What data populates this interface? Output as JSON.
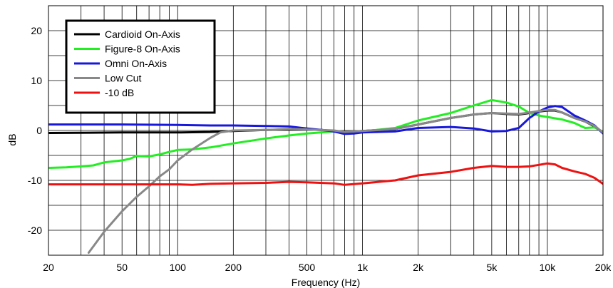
{
  "chart_data": {
    "type": "line",
    "title": "",
    "xlabel": "Frequency (Hz)",
    "ylabel": "dB",
    "x_scale": "log",
    "xlim": [
      20,
      20000
    ],
    "ylim": [
      -25,
      25
    ],
    "grid": true,
    "legend_position": "top-left",
    "x_ticks": [
      {
        "value": 20,
        "label": "20"
      },
      {
        "value": 50,
        "label": "50"
      },
      {
        "value": 100,
        "label": "100"
      },
      {
        "value": 200,
        "label": "200"
      },
      {
        "value": 500,
        "label": "500"
      },
      {
        "value": 1000,
        "label": "1k"
      },
      {
        "value": 2000,
        "label": "2k"
      },
      {
        "value": 5000,
        "label": "5k"
      },
      {
        "value": 10000,
        "label": "10k"
      },
      {
        "value": 20000,
        "label": "20k"
      }
    ],
    "y_ticks": [
      {
        "value": 20,
        "label": "20"
      },
      {
        "value": 10,
        "label": "10"
      },
      {
        "value": 0,
        "label": "0"
      },
      {
        "value": -10,
        "label": "-10"
      },
      {
        "value": -20,
        "label": "-20"
      }
    ],
    "series": [
      {
        "name": "Cardioid On-Axis",
        "color": "#000000",
        "points": [
          [
            20,
            -0.5
          ],
          [
            50,
            -0.4
          ],
          [
            100,
            -0.4
          ],
          [
            150,
            -0.3
          ],
          [
            200,
            -0.1
          ],
          [
            300,
            0.1
          ],
          [
            400,
            0.2
          ],
          [
            500,
            0.2
          ],
          [
            600,
            0.1
          ],
          [
            700,
            -0.1
          ],
          [
            800,
            -0.3
          ],
          [
            900,
            -0.2
          ],
          [
            1000,
            -0.1
          ],
          [
            1500,
            0.3
          ],
          [
            2000,
            1.2
          ],
          [
            3000,
            2.5
          ],
          [
            4000,
            3.2
          ],
          [
            5000,
            3.5
          ],
          [
            6000,
            3.3
          ],
          [
            7000,
            3.2
          ],
          [
            8000,
            3.5
          ],
          [
            9000,
            3.8
          ],
          [
            10000,
            4.0
          ],
          [
            11000,
            4.0
          ],
          [
            12000,
            3.6
          ],
          [
            14000,
            2.5
          ],
          [
            16000,
            1.8
          ],
          [
            18000,
            0.8
          ],
          [
            20000,
            -0.4
          ]
        ]
      },
      {
        "name": "Figure-8 On-Axis",
        "color": "#22ee22",
        "points": [
          [
            20,
            -7.5
          ],
          [
            25,
            -7.4
          ],
          [
            30,
            -7.2
          ],
          [
            35,
            -7.0
          ],
          [
            40,
            -6.4
          ],
          [
            50,
            -6.0
          ],
          [
            55,
            -5.7
          ],
          [
            60,
            -5.1
          ],
          [
            70,
            -5.2
          ],
          [
            80,
            -4.8
          ],
          [
            90,
            -4.3
          ],
          [
            100,
            -3.9
          ],
          [
            120,
            -3.8
          ],
          [
            150,
            -3.4
          ],
          [
            200,
            -2.6
          ],
          [
            300,
            -1.6
          ],
          [
            400,
            -1.0
          ],
          [
            500,
            -0.6
          ],
          [
            700,
            -0.2
          ],
          [
            800,
            -0.4
          ],
          [
            1000,
            -0.2
          ],
          [
            1500,
            0.5
          ],
          [
            2000,
            2.0
          ],
          [
            3000,
            3.5
          ],
          [
            4000,
            5.0
          ],
          [
            5000,
            6.1
          ],
          [
            6000,
            5.6
          ],
          [
            7000,
            4.8
          ],
          [
            8000,
            3.5
          ],
          [
            9000,
            3.0
          ],
          [
            10000,
            2.7
          ],
          [
            12000,
            2.2
          ],
          [
            14000,
            1.5
          ],
          [
            16000,
            0.5
          ],
          [
            18000,
            0.6
          ],
          [
            20000,
            -0.3
          ]
        ]
      },
      {
        "name": "Omni On-Axis",
        "color": "#1818dd",
        "points": [
          [
            20,
            1.2
          ],
          [
            50,
            1.2
          ],
          [
            100,
            1.1
          ],
          [
            150,
            1.0
          ],
          [
            200,
            1.0
          ],
          [
            300,
            0.9
          ],
          [
            400,
            0.8
          ],
          [
            500,
            0.4
          ],
          [
            600,
            0.1
          ],
          [
            700,
            -0.2
          ],
          [
            800,
            -0.7
          ],
          [
            900,
            -0.6
          ],
          [
            1000,
            -0.4
          ],
          [
            1500,
            -0.2
          ],
          [
            2000,
            0.5
          ],
          [
            3000,
            0.7
          ],
          [
            4000,
            0.4
          ],
          [
            5000,
            -0.2
          ],
          [
            6000,
            -0.1
          ],
          [
            7000,
            0.5
          ],
          [
            8000,
            2.5
          ],
          [
            9000,
            3.8
          ],
          [
            10000,
            4.6
          ],
          [
            11000,
            4.9
          ],
          [
            12000,
            4.7
          ],
          [
            14000,
            3.0
          ],
          [
            16000,
            2.0
          ],
          [
            18000,
            1.0
          ],
          [
            20000,
            -0.6
          ]
        ]
      },
      {
        "name": "Low Cut",
        "color": "#888888",
        "points": [
          [
            33,
            -24.5
          ],
          [
            40,
            -20.3
          ],
          [
            50,
            -16.2
          ],
          [
            60,
            -13.3
          ],
          [
            70,
            -11.2
          ],
          [
            80,
            -9.2
          ],
          [
            90,
            -7.8
          ],
          [
            100,
            -6.0
          ],
          [
            120,
            -3.8
          ],
          [
            150,
            -1.5
          ],
          [
            170,
            -0.4
          ],
          [
            200,
            0.0
          ],
          [
            300,
            0.1
          ],
          [
            400,
            0.3
          ],
          [
            500,
            0.2
          ],
          [
            700,
            0.0
          ],
          [
            800,
            -0.3
          ],
          [
            1000,
            -0.1
          ],
          [
            1500,
            0.3
          ],
          [
            2000,
            1.2
          ],
          [
            3000,
            2.5
          ],
          [
            4000,
            3.2
          ],
          [
            5000,
            3.5
          ],
          [
            6000,
            3.4
          ],
          [
            7000,
            3.3
          ],
          [
            8000,
            3.6
          ],
          [
            9000,
            3.9
          ],
          [
            10000,
            4.1
          ],
          [
            11000,
            4.1
          ],
          [
            12000,
            3.6
          ],
          [
            14000,
            2.5
          ],
          [
            16000,
            1.8
          ],
          [
            18000,
            0.9
          ],
          [
            20000,
            -0.4
          ]
        ]
      },
      {
        "name": "-10 dB",
        "color": "#ee1111",
        "points": [
          [
            20,
            -10.8
          ],
          [
            50,
            -10.8
          ],
          [
            100,
            -10.8
          ],
          [
            120,
            -10.9
          ],
          [
            150,
            -10.7
          ],
          [
            200,
            -10.6
          ],
          [
            300,
            -10.5
          ],
          [
            400,
            -10.3
          ],
          [
            500,
            -10.4
          ],
          [
            700,
            -10.6
          ],
          [
            800,
            -10.9
          ],
          [
            1000,
            -10.6
          ],
          [
            1500,
            -10.0
          ],
          [
            2000,
            -9.0
          ],
          [
            3000,
            -8.3
          ],
          [
            4000,
            -7.5
          ],
          [
            5000,
            -7.1
          ],
          [
            6000,
            -7.3
          ],
          [
            7000,
            -7.3
          ],
          [
            8000,
            -7.2
          ],
          [
            9000,
            -6.9
          ],
          [
            10000,
            -6.6
          ],
          [
            11000,
            -6.8
          ],
          [
            12000,
            -7.5
          ],
          [
            14000,
            -8.2
          ],
          [
            16000,
            -8.7
          ],
          [
            18000,
            -9.5
          ],
          [
            20000,
            -10.7
          ]
        ]
      }
    ]
  }
}
